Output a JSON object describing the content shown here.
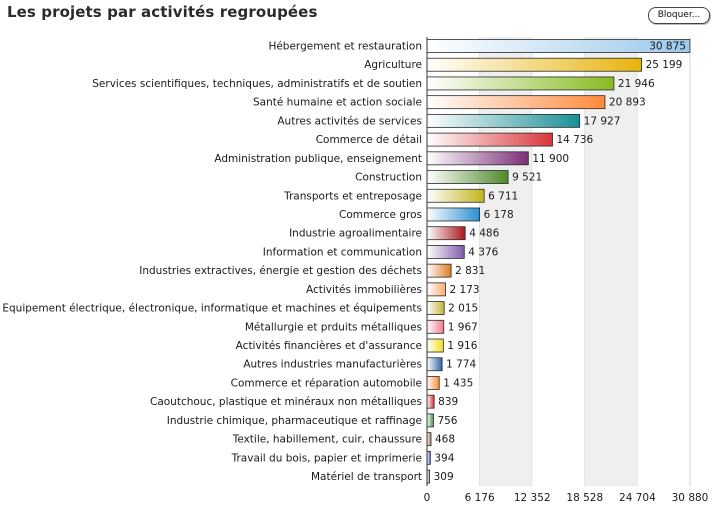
{
  "page": {
    "title": "Les projets par activités regroupées",
    "lock_button_label": "Bloquer..."
  },
  "chart_data": {
    "type": "bar",
    "orientation": "horizontal",
    "title": "Les projets par activités regroupées",
    "xlabel": "",
    "ylabel": "",
    "xlim": [
      0,
      30880
    ],
    "x_ticks": [
      0,
      6176,
      12352,
      18528,
      24704,
      30880
    ],
    "x_tick_labels": [
      "0",
      "6 176",
      "12 352",
      "18 528",
      "24 704",
      "30 880"
    ],
    "grid": "vertical bands",
    "categories": [
      "Hébergement et restauration",
      "Agriculture",
      "Services scientifiques, techniques, administratifs et de soutien",
      "Santé humaine et action sociale",
      "Autres activités de services",
      "Commerce de détail",
      "Administration publique, enseignement",
      "Construction",
      "Transports et entreposage",
      "Commerce gros",
      "Industrie agroalimentaire",
      "Information et communication",
      "Industries extractives, énergie et gestion des déchets",
      "Activités immobilières",
      "Equipement électrique, électronique, informatique et machines et équipements",
      "Métallurgie et prduits métalliques",
      "Activités financières et d'assurance",
      "Autres industries manufacturières",
      "Commerce et réparation automobile",
      "Caoutchouc, plastique et minéraux non métalliques",
      "Industrie chimique, pharmaceutique et raffinage",
      "Textile, habillement, cuir, chaussure",
      "Travail du bois, papier et imprimerie",
      "Matériel de transport"
    ],
    "values": [
      30875,
      25199,
      21946,
      20893,
      17927,
      14736,
      11900,
      9521,
      6711,
      6178,
      4486,
      4376,
      2831,
      2173,
      2015,
      1967,
      1916,
      1774,
      1435,
      839,
      756,
      468,
      394,
      309
    ],
    "value_labels": [
      "30 875",
      "25 199",
      "21 946",
      "20 893",
      "17 927",
      "14 736",
      "11 900",
      "9 521",
      "6 711",
      "6 178",
      "4 486",
      "4 376",
      "2 831",
      "2 173",
      "2 015",
      "1 967",
      "1 916",
      "1 774",
      "1 435",
      "839",
      "756",
      "468",
      "394",
      "309"
    ],
    "colors": [
      "#9cc8ea",
      "#e8b40c",
      "#88bb22",
      "#ff8a3c",
      "#1a8f96",
      "#d9363c",
      "#7c2f78",
      "#4f8a2a",
      "#c2b41e",
      "#2a8fd6",
      "#a8161c",
      "#7f5aa8",
      "#e07a26",
      "#ffaa70",
      "#c2b43a",
      "#f07a8a",
      "#f0e020",
      "#2f62a8",
      "#ff8a30",
      "#d8302c",
      "#3d9a4a",
      "#a8705a",
      "#3a6ad0",
      "#9a9a9a"
    ]
  }
}
